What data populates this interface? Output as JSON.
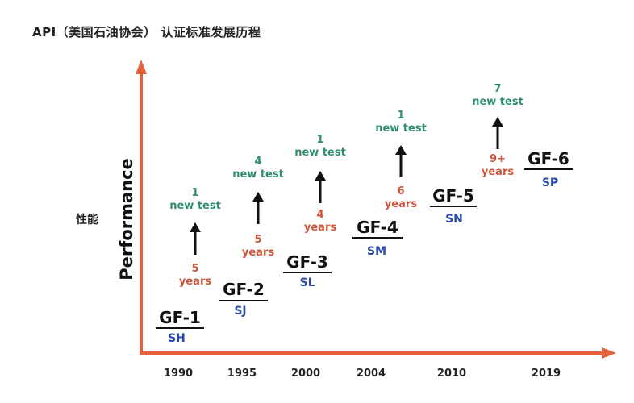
{
  "title": "API（美国石油协会） 认证标准发展历程",
  "y_axis": {
    "label_cn": "性能",
    "label_en": "Performance"
  },
  "colors": {
    "axis": "#e4613b",
    "grade": "#2a4aa8",
    "tests": "#2f8f6a",
    "years": "#d0553a",
    "text": "#111111"
  },
  "years": [
    "1990",
    "1995",
    "2000",
    "2004",
    "2010",
    "2019"
  ],
  "steps": [
    {
      "gf": "GF-1",
      "sn": "SH"
    },
    {
      "gf": "GF-2",
      "sn": "SJ"
    },
    {
      "gf": "GF-3",
      "sn": "SL"
    },
    {
      "gf": "GF-4",
      "sn": "SM"
    },
    {
      "gf": "GF-5",
      "sn": "SN"
    },
    {
      "gf": "GF-6",
      "sn": "SP"
    }
  ],
  "transitions": [
    {
      "tests_count": "1",
      "tests_label": "new test",
      "years_count": "5",
      "years_label": "years"
    },
    {
      "tests_count": "4",
      "tests_label": "new test",
      "years_count": "5",
      "years_label": "years"
    },
    {
      "tests_count": "1",
      "tests_label": "new test",
      "years_count": "4",
      "years_label": "years"
    },
    {
      "tests_count": "1",
      "tests_label": "new test",
      "years_count": "6",
      "years_label": "years"
    },
    {
      "tests_count": "7",
      "tests_label": "new test",
      "years_count": "9+",
      "years_label": "years"
    }
  ]
}
